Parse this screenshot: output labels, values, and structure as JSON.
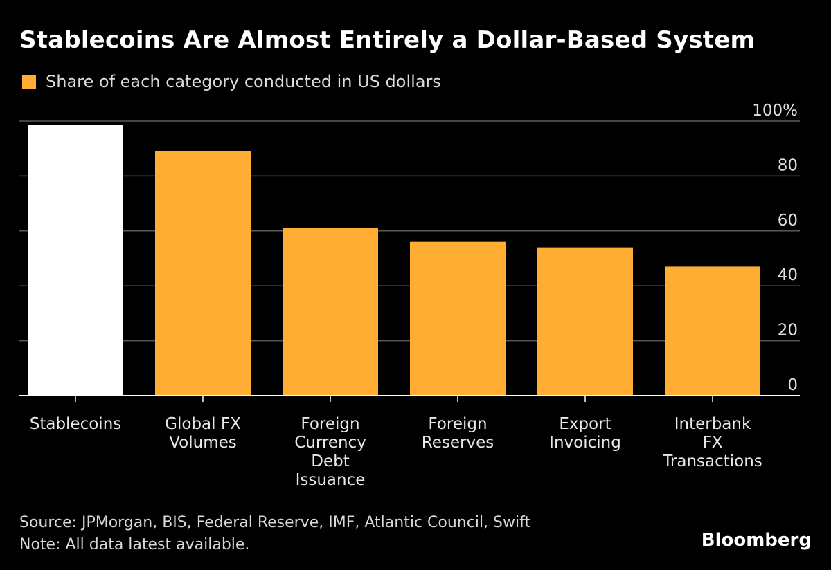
{
  "chart_data": {
    "type": "bar",
    "title": "Stablecoins Are Almost Entirely a Dollar-Based System",
    "legend": [
      {
        "label": "Share of each category conducted in US dollars",
        "color": "#ffad33"
      }
    ],
    "categories": [
      "Stablecoins",
      "Global FX Volumes",
      "Foreign Currency Debt Issuance",
      "Foreign Reserves",
      "Export Invoicing",
      "Interbank FX Transactions"
    ],
    "category_lines": [
      [
        "Stablecoins"
      ],
      [
        "Global FX",
        "Volumes"
      ],
      [
        "Foreign",
        "Currency",
        "Debt",
        "Issuance"
      ],
      [
        "Foreign",
        "Reserves"
      ],
      [
        "Export",
        "Invoicing"
      ],
      [
        "Interbank",
        "FX",
        "Transactions"
      ]
    ],
    "series": [
      {
        "name": "Share of each category conducted in US dollars",
        "values": [
          98.5,
          89,
          61,
          56,
          54,
          47
        ]
      }
    ],
    "bar_colors": [
      "#ffffff",
      "#ffad33",
      "#ffad33",
      "#ffad33",
      "#ffad33",
      "#ffad33"
    ],
    "ylim": [
      0,
      100
    ],
    "yticks": [
      0,
      20,
      40,
      60,
      80,
      100
    ],
    "ytick_labels": [
      "0",
      "20",
      "40",
      "60",
      "80",
      "100%"
    ],
    "y_axis_side": "right",
    "grid": true,
    "xlabel": "",
    "ylabel": ""
  },
  "footer": {
    "source": "Source: JPMorgan, BIS, Federal Reserve, IMF, Atlantic Council, Swift",
    "note": "Note: All data latest available."
  },
  "brand": "Bloomberg",
  "colors": {
    "background": "#000000",
    "accent": "#ffad33",
    "highlight": "#ffffff",
    "grid": "#5a5a5a"
  }
}
